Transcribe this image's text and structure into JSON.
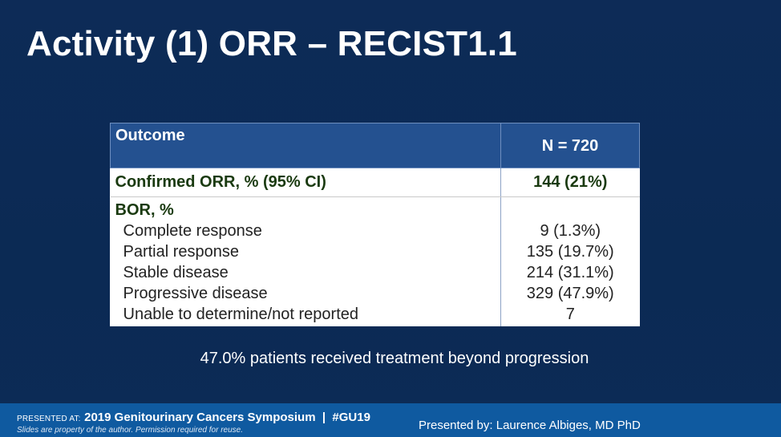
{
  "slide": {
    "title": "Activity (1) ORR – RECIST1.1",
    "note": "47.0% patients received treatment beyond progression"
  },
  "table": {
    "headers": {
      "outcome": "Outcome",
      "n": "N = 720"
    },
    "orr": {
      "label": "Confirmed ORR, % (95% CI)",
      "value": "144 (21%)"
    },
    "bor": {
      "label": "BOR, %",
      "items": [
        {
          "label": "Complete response",
          "value": "9 (1.3%)"
        },
        {
          "label": "Partial response",
          "value": "135 (19.7%)"
        },
        {
          "label": "Stable disease",
          "value": "214 (31.1%)"
        },
        {
          "label": "Progressive disease",
          "value": "329 (47.9%)"
        },
        {
          "label": "Unable to determine/not reported",
          "value": "7"
        }
      ]
    }
  },
  "footer": {
    "presented_at_label": "PRESENTED AT:",
    "event": "2019 Genitourinary Cancers Symposium  |  #GU19",
    "rights": "Slides are property of the author. Permission required for reuse.",
    "presenter": "Presented by: Laurence Albiges, MD PhD"
  }
}
